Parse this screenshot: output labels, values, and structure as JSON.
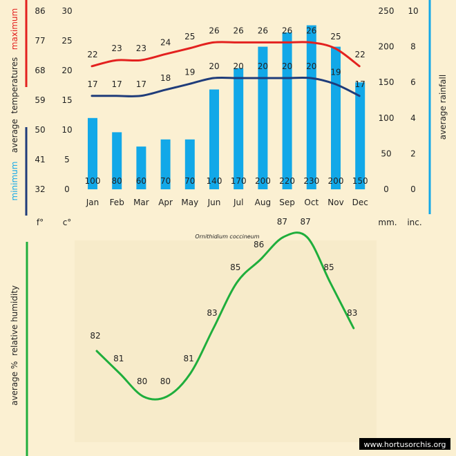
{
  "colors": {
    "background": "#fbf0d2",
    "panel": "#f7ebca",
    "max_temp": "#e3211f",
    "min_temp": "#1f3c7a",
    "rainfall": "#12a8e8",
    "humidity": "#1fae3c",
    "axis_text": "#222222",
    "watermark_bg": "#000000",
    "watermark_text": "#ffffff"
  },
  "species": "Ornithidium coccineum",
  "watermark": "www.hortusorchis.org",
  "unit_labels": {
    "fahrenheit": "f°",
    "celsius": "c°",
    "mm": "mm.",
    "inches": "inc."
  },
  "axis_titles": {
    "maximum": "maximum",
    "minimum": "minimum",
    "average_temperatures": "average  temperatures",
    "rainfall": "average rainfall",
    "humidity": "average %  relative humidity"
  },
  "chart_data": [
    {
      "type": "line+bar",
      "title": "Ornithidium coccineum",
      "categories": [
        "Jan",
        "Feb",
        "Mar",
        "Apr",
        "May",
        "Jun",
        "Jul",
        "Aug",
        "Sep",
        "Oct",
        "Nov",
        "Dec"
      ],
      "series": [
        {
          "name": "maximum",
          "kind": "line",
          "axis": "temperature",
          "values": [
            22,
            23,
            23,
            24,
            25,
            26,
            26,
            26,
            26,
            26,
            25,
            22
          ]
        },
        {
          "name": "minimum",
          "kind": "line",
          "axis": "temperature",
          "values": [
            17,
            17,
            17,
            18,
            19,
            20,
            20,
            20,
            20,
            20,
            19,
            17
          ]
        },
        {
          "name": "average rainfall",
          "kind": "bar",
          "axis": "rainfall",
          "values": [
            100,
            80,
            60,
            70,
            70,
            140,
            170,
            200,
            220,
            230,
            200,
            150
          ]
        }
      ],
      "celsius_ticks": [
        "30",
        "25",
        "20",
        "15",
        "10",
        "5",
        "0"
      ],
      "fahrenheit_ticks": [
        "86",
        "77",
        "68",
        "59",
        "50",
        "41",
        "32"
      ],
      "mm_ticks": [
        "250",
        "200",
        "150",
        "100",
        "50",
        "0"
      ],
      "inch_ticks": [
        "10",
        "8",
        "6",
        "4",
        "2",
        "0"
      ],
      "ylim_celsius": [
        0,
        30
      ],
      "ylim_mm": [
        0,
        250
      ]
    },
    {
      "type": "line",
      "name": "average % relative humidity",
      "categories": [
        "Jan",
        "Feb",
        "Mar",
        "Apr",
        "May",
        "Jun",
        "Jul",
        "Aug",
        "Sep",
        "Oct",
        "Nov",
        "Dec"
      ],
      "values": [
        82,
        81,
        80,
        80,
        81,
        83,
        85,
        86,
        87,
        87,
        85,
        83
      ]
    }
  ]
}
